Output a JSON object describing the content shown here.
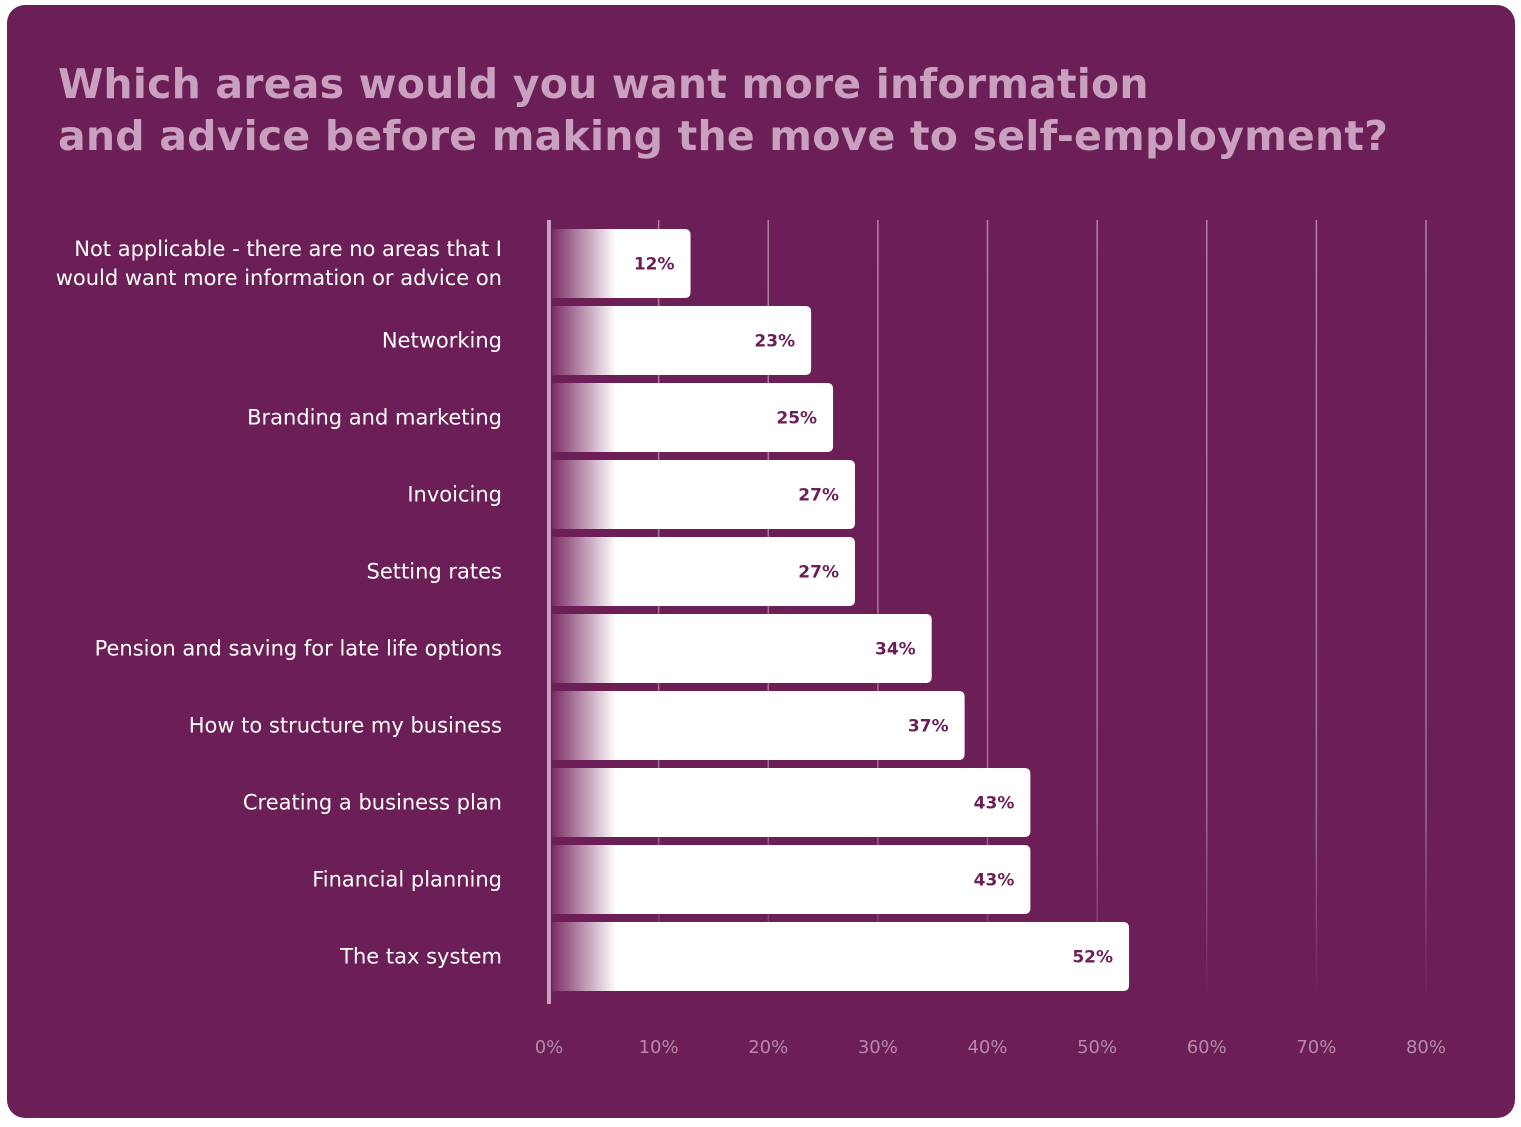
{
  "colors": {
    "background": "#6c1f57",
    "title": "#c9a1bf",
    "bar": "#ffffff",
    "value_label": "#6c1f57",
    "tick": "#b78aa9"
  },
  "chart_data": {
    "type": "bar",
    "orientation": "horizontal",
    "title": [
      "Which areas would you want more information",
      "and advice before making the move to self-employment?"
    ],
    "categories": [
      [
        "Not applicable - there are no areas that I",
        "would want more information or advice on"
      ],
      [
        "Networking"
      ],
      [
        "Branding and marketing"
      ],
      [
        "Invoicing"
      ],
      [
        "Setting rates"
      ],
      [
        "Pension and saving for late life options"
      ],
      [
        "How to structure my business"
      ],
      [
        "Creating a business plan"
      ],
      [
        "Financial planning"
      ],
      [
        "The tax system"
      ]
    ],
    "values": [
      12,
      23,
      25,
      27,
      27,
      34,
      37,
      43,
      43,
      52
    ],
    "value_labels": [
      "12%",
      "23%",
      "25%",
      "27%",
      "27%",
      "34%",
      "37%",
      "43%",
      "43%",
      "52%"
    ],
    "xlim": [
      0,
      80
    ],
    "x_ticks": [
      "0%",
      "10%",
      "20%",
      "30%",
      "40%",
      "50%",
      "60%",
      "70%",
      "80%"
    ],
    "grid": "vertical",
    "xlabel": "",
    "ylabel": ""
  }
}
